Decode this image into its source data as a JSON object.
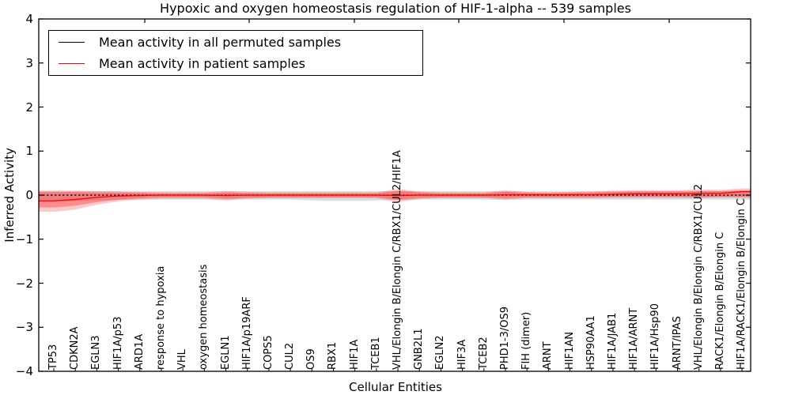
{
  "figure": {
    "title": "Hypoxic and oxygen homeostasis regulation of HIF-1-alpha -- 539 samples",
    "xlabel": "Cellular Entities",
    "ylabel": "Inferred Activity"
  },
  "legend": {
    "items": [
      {
        "label": "Mean activity in all permuted samples",
        "color": "#000000"
      },
      {
        "label": "Mean activity in patient samples",
        "color": "#ff0000"
      }
    ]
  },
  "chart_data": {
    "type": "line",
    "title": "Hypoxic and oxygen homeostasis regulation of HIF-1-alpha -- 539 samples",
    "xlabel": "Cellular Entities",
    "ylabel": "Inferred Activity",
    "ylim": [
      -4,
      4
    ],
    "yticks": [
      4,
      3,
      2,
      1,
      0,
      -1,
      -2,
      -3,
      -4
    ],
    "grid": false,
    "legend_position": "upper left",
    "x_tick_label_rotation": 90,
    "categories": [
      "TP53",
      "CDKN2A",
      "EGLN3",
      "HIF1A/p53",
      "ARD1A",
      "response to hypoxia",
      "VHL",
      "oxygen homeostasis",
      "EGLN1",
      "HIF1A/p19ARF",
      "COPS5",
      "CUL2",
      "OS9",
      "RBX1",
      "HIF1A",
      "TCEB1",
      "VHL/Elongin B/Elongin C/RBX1/CUL2/HIF1A",
      "GNB2L1",
      "EGLN2",
      "HIF3A",
      "TCEB2",
      "PHD1-3/OS9",
      "FIH (dimer)",
      "ARNT",
      "HIF1AN",
      "HSP90AA1",
      "HIF1A/JAB1",
      "HIF1A/ARNT",
      "HIF1A/Hsp90",
      "ARNT/IPAS",
      "VHL/Elongin B/Elongin C/RBX1/CUL2",
      "RACK1/Elongin B/Elongin C",
      "HIF1A/RACK1/Elongin B/Elongin C"
    ],
    "series": [
      {
        "name": "Mean activity in all permuted samples",
        "color": "#000000",
        "style": "dashed",
        "values": [
          0,
          0,
          0,
          0,
          0,
          0,
          0,
          0,
          0,
          0,
          0,
          0,
          0,
          0,
          0,
          0,
          0,
          0,
          0,
          0,
          0,
          0,
          0,
          0,
          0,
          0,
          0,
          0,
          0,
          0,
          0,
          0,
          0
        ]
      },
      {
        "name": "Mean activity in patient samples",
        "color": "#ff0000",
        "style": "solid",
        "values": [
          -0.13,
          -0.1,
          -0.05,
          -0.02,
          -0.01,
          0,
          0,
          0,
          -0.01,
          0,
          0,
          0,
          0,
          0,
          0,
          0,
          -0.01,
          0,
          0,
          0,
          0,
          0.01,
          0.01,
          0.01,
          0.01,
          0.01,
          0.02,
          0.03,
          0.03,
          0.03,
          0.04,
          0.04,
          0.08
        ]
      }
    ],
    "bands": [
      {
        "name": "permuted-samples-range",
        "color": "#bfbfbf",
        "opacity": 0.55,
        "upper": [
          0.09,
          0.09,
          0.09,
          0.09,
          0.09,
          0.09,
          0.09,
          0.09,
          0.09,
          0.09,
          0.09,
          0.09,
          0.09,
          0.09,
          0.09,
          0.09,
          0.09,
          0.09,
          0.09,
          0.09,
          0.09,
          0.09,
          0.09,
          0.09,
          0.09,
          0.09,
          0.09,
          0.09,
          0.09,
          0.09,
          0.09,
          0.09,
          0.09
        ],
        "lower": [
          -0.15,
          -0.14,
          -0.12,
          -0.11,
          -0.1,
          -0.1,
          -0.1,
          -0.1,
          -0.1,
          -0.1,
          -0.1,
          -0.1,
          -0.12,
          -0.13,
          -0.13,
          -0.12,
          -0.11,
          -0.1,
          -0.1,
          -0.1,
          -0.1,
          -0.11,
          -0.1,
          -0.1,
          -0.1,
          -0.1,
          -0.1,
          -0.1,
          -0.1,
          -0.1,
          -0.1,
          -0.1,
          -0.1
        ]
      },
      {
        "name": "patient-samples-range-outer",
        "color": "#ff4d4d",
        "opacity": 0.3,
        "upper": [
          0.1,
          0.1,
          0.09,
          0.08,
          0.07,
          0.06,
          0.06,
          0.06,
          0.09,
          0.07,
          0.06,
          0.06,
          0.06,
          0.06,
          0.06,
          0.06,
          0.14,
          0.08,
          0.06,
          0.06,
          0.06,
          0.11,
          0.07,
          0.06,
          0.07,
          0.08,
          0.1,
          0.11,
          0.11,
          0.11,
          0.13,
          0.12,
          0.15
        ],
        "lower": [
          -0.38,
          -0.33,
          -0.22,
          -0.14,
          -0.1,
          -0.08,
          -0.08,
          -0.08,
          -0.12,
          -0.08,
          -0.07,
          -0.07,
          -0.07,
          -0.07,
          -0.07,
          -0.07,
          -0.16,
          -0.09,
          -0.07,
          -0.07,
          -0.07,
          -0.1,
          -0.07,
          -0.07,
          -0.07,
          -0.07,
          -0.06,
          -0.06,
          -0.06,
          -0.06,
          -0.07,
          -0.05,
          -0.06
        ]
      },
      {
        "name": "patient-samples-range-inner",
        "color": "#ff3333",
        "opacity": 0.4,
        "upper": [
          0.07,
          0.07,
          0.06,
          0.06,
          0.05,
          0.04,
          0.04,
          0.04,
          0.06,
          0.05,
          0.04,
          0.04,
          0.04,
          0.04,
          0.04,
          0.04,
          0.1,
          0.06,
          0.04,
          0.04,
          0.04,
          0.08,
          0.05,
          0.04,
          0.05,
          0.06,
          0.07,
          0.08,
          0.08,
          0.08,
          0.09,
          0.09,
          0.11
        ],
        "lower": [
          -0.28,
          -0.24,
          -0.16,
          -0.1,
          -0.07,
          -0.05,
          -0.05,
          -0.05,
          -0.08,
          -0.06,
          -0.05,
          -0.05,
          -0.05,
          -0.05,
          -0.05,
          -0.05,
          -0.11,
          -0.06,
          -0.05,
          -0.05,
          -0.05,
          -0.07,
          -0.05,
          -0.05,
          -0.05,
          -0.05,
          -0.04,
          -0.04,
          -0.04,
          -0.04,
          -0.05,
          -0.04,
          -0.04
        ]
      }
    ]
  }
}
